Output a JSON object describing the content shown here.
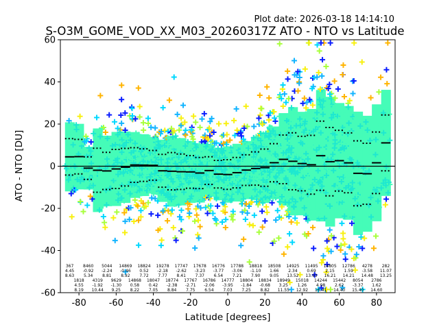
{
  "chart_data": {
    "type": "scatter",
    "title": "S-O3M_GOME_VOD_XX_M03_20260317Z ATO - NTO vs Latitude",
    "plot_date": "Plot date: 2026-03-18 14:14:10",
    "xlabel": "Latitude [degrees]",
    "ylabel": "ATO - NTO [DU]",
    "xlim": [
      -90,
      90
    ],
    "ylim": [
      -60,
      60
    ],
    "xticks": [
      -80,
      -60,
      -40,
      -20,
      0,
      20,
      40,
      60,
      80
    ],
    "yticks": [
      -60,
      -40,
      -20,
      0,
      20,
      40,
      60
    ],
    "grid": false,
    "bins": {
      "lat": [
        -85,
        -80,
        -75,
        -70,
        -65,
        -60,
        -55,
        -50,
        -45,
        -40,
        -35,
        -30,
        -25,
        -20,
        -15,
        -10,
        -5,
        0,
        5,
        10,
        15,
        20,
        25,
        30,
        35,
        40,
        45,
        50,
        55,
        60,
        65,
        70,
        75,
        80,
        85
      ],
      "count": [
        367,
        1818,
        8460,
        4319,
        5044,
        9629,
        14869,
        14868,
        18824,
        18047,
        19278,
        18774,
        17747,
        17767,
        17678,
        16786,
        16776,
        14777,
        17788,
        18804,
        18818,
        18834,
        18508,
        18949,
        14925,
        15018,
        11495,
        14244,
        14805,
        15442,
        12786,
        8054,
        4278,
        2786,
        282
      ],
      "mean": [
        4.45,
        4.55,
        -0.92,
        -1.92,
        -2.24,
        -1.3,
        -0.46,
        0.58,
        0.52,
        0.42,
        -2.18,
        -2.38,
        -2.62,
        -2.71,
        -3.23,
        -2.06,
        -3.77,
        -3.95,
        -3.06,
        -1.84,
        -1.1,
        -0.68,
        1.66,
        3.25,
        2.34,
        1.26,
        0.69,
        4.98,
        2.15,
        2.62,
        1.59,
        -3.37,
        -3.58,
        1.62,
        11.07
      ],
      "std": [
        8.63,
        8.19,
        5.34,
        10.44,
        8.81,
        9.25,
        8.92,
        8.22,
        7.72,
        7.05,
        7.77,
        8.84,
        8.41,
        7.75,
        7.37,
        6.54,
        6.54,
        7.03,
        7.21,
        7.25,
        7.9,
        8.82,
        9.05,
        11.55,
        13.52,
        12.92,
        13.93,
        16.41,
        16.21,
        14.4,
        14.21,
        15.4,
        14.48,
        14.6,
        13.25
      ]
    },
    "colors": {
      "main": "#45fcb8",
      "palette": [
        "#45fcb8",
        "#1ee8d0",
        "#12b4ff",
        "#0a1cff",
        "#f8f010",
        "#ffb400",
        "#a8ff3c",
        "#00d8ff"
      ],
      "mean_line": "#000000"
    }
  }
}
